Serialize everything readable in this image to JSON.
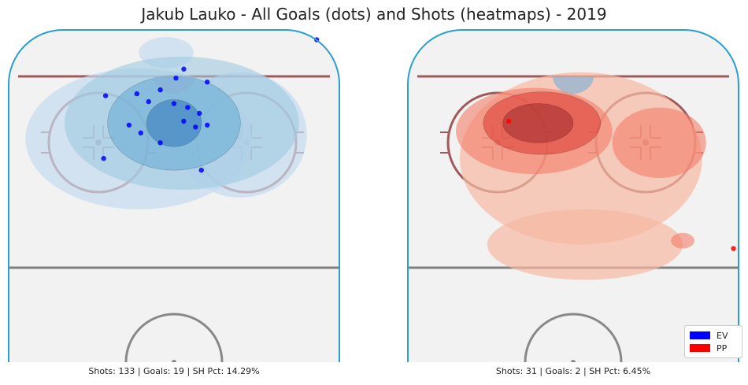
{
  "chart_data": {
    "type": "heatmap",
    "title": "Jakub Lauko - All Goals (dots) and Shots (heatmaps) - 2019",
    "legend": {
      "placement": "bottom-right",
      "entries": [
        {
          "label": "EV",
          "color": "#0000ff"
        },
        {
          "label": "PP",
          "color": "#ff0000"
        }
      ]
    },
    "panels": [
      {
        "strength": "EV",
        "color": "#0000ff",
        "colormap": "Blues",
        "caption": "Shots: 133 | Goals: 19 | SH Pct: 14.29%",
        "x_range": [
          -42.5,
          42.5
        ],
        "y_range": [
          0,
          85
        ],
        "goals": [
          {
            "x": 36.5,
            "y": 82.3
          },
          {
            "x": -17.5,
            "y": 68
          },
          {
            "x": -9.5,
            "y": 68.5
          },
          {
            "x": -3.5,
            "y": 69.5
          },
          {
            "x": 0.5,
            "y": 72.5
          },
          {
            "x": 2.5,
            "y": 74.8
          },
          {
            "x": 8.5,
            "y": 71.5
          },
          {
            "x": -6.5,
            "y": 66.5
          },
          {
            "x": 0,
            "y": 66
          },
          {
            "x": 3.5,
            "y": 65
          },
          {
            "x": 6.5,
            "y": 63.5
          },
          {
            "x": 8.5,
            "y": 60.5
          },
          {
            "x": 5.5,
            "y": 60
          },
          {
            "x": 2.5,
            "y": 61.5
          },
          {
            "x": -11.5,
            "y": 60.5
          },
          {
            "x": -8.5,
            "y": 58.5
          },
          {
            "x": -3.5,
            "y": 56
          },
          {
            "x": -18,
            "y": 52
          },
          {
            "x": 7,
            "y": 49
          }
        ],
        "density": [
          {
            "level": 1,
            "x": -9,
            "y": 57,
            "rx": 29,
            "ry": 18
          },
          {
            "level": 1,
            "x": 17,
            "y": 58,
            "rx": 17,
            "ry": 16
          },
          {
            "level": 1,
            "x": -2,
            "y": 79,
            "rx": 7,
            "ry": 4
          },
          {
            "level": 2,
            "x": 2,
            "y": 61,
            "rx": 30,
            "ry": 17
          },
          {
            "level": 3,
            "x": 0,
            "y": 61,
            "rx": 17,
            "ry": 12
          },
          {
            "level": 4,
            "x": 0,
            "y": 61,
            "rx": 7,
            "ry": 6
          }
        ]
      },
      {
        "strength": "PP",
        "color": "#ff0000",
        "colormap": "Reds",
        "caption": "Shots: 31 | Goals: 2 | SH Pct: 6.45%",
        "x_range": [
          -42.5,
          42.5
        ],
        "y_range": [
          0,
          85
        ],
        "goals": [
          {
            "x": -16.5,
            "y": 61.5
          },
          {
            "x": 41,
            "y": 29
          }
        ],
        "density": [
          {
            "level": 1,
            "x": 2,
            "y": 52,
            "rx": 31,
            "ry": 22
          },
          {
            "level": 1,
            "x": 3,
            "y": 30,
            "rx": 25,
            "ry": 9
          },
          {
            "level": 2,
            "x": -10,
            "y": 59,
            "rx": 20,
            "ry": 11
          },
          {
            "level": 2,
            "x": 22,
            "y": 56,
            "rx": 12,
            "ry": 9
          },
          {
            "level": 2,
            "x": 28,
            "y": 31,
            "rx": 3,
            "ry": 2
          },
          {
            "level": 3,
            "x": -8,
            "y": 61,
            "rx": 15,
            "ry": 8
          },
          {
            "level": 4,
            "x": -9,
            "y": 61,
            "rx": 9,
            "ry": 5
          }
        ]
      }
    ]
  }
}
